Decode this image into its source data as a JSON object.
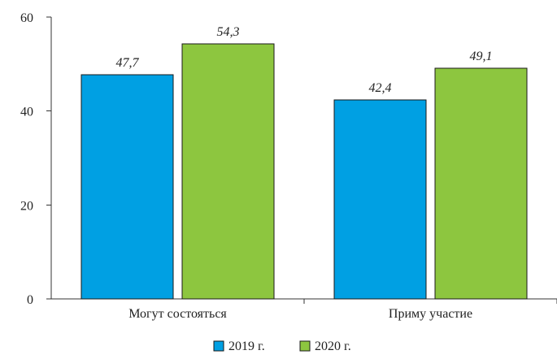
{
  "chart_data": {
    "type": "bar",
    "title": "",
    "xlabel": "",
    "ylabel": "",
    "categories": [
      "Могут состояться",
      "Приму участие"
    ],
    "series": [
      {
        "name": "2019 г.",
        "values": [
          47.7,
          42.4
        ],
        "labels": [
          "47,7",
          "42,4"
        ],
        "color": "#00a0e3"
      },
      {
        "name": "2020 г.",
        "values": [
          54.3,
          49.1
        ],
        "labels": [
          "54,3",
          "49,1"
        ],
        "color": "#8dc63f"
      }
    ],
    "ylim": [
      0,
      60
    ],
    "yticks": [
      0,
      20,
      40,
      60
    ],
    "grid": false,
    "legend": "bottom-center"
  }
}
